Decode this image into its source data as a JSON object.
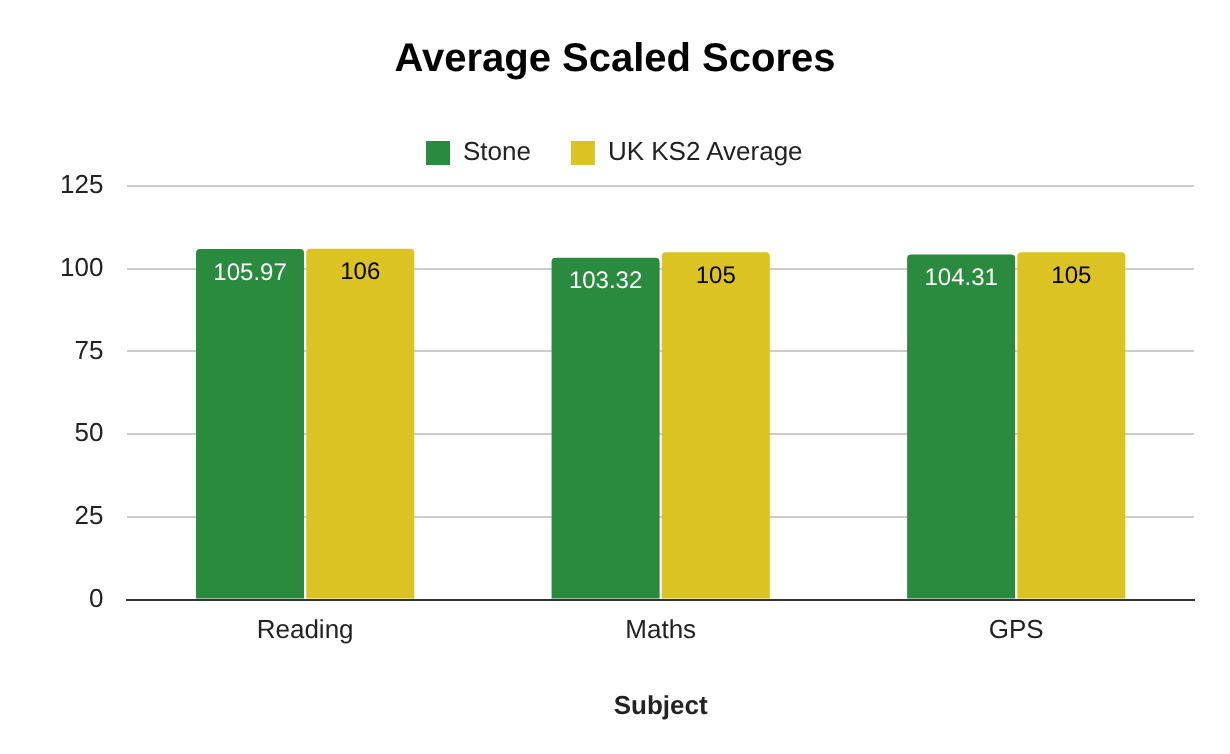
{
  "chart_data": {
    "type": "bar",
    "title": "Average Scaled Scores",
    "xlabel": "Subject",
    "categories": [
      "Reading",
      "Maths",
      "GPS"
    ],
    "series": [
      {
        "name": "Stone",
        "color": "#2a8a3e",
        "values": [
          105.97,
          103.32,
          104.31
        ]
      },
      {
        "name": "UK KS2 Average",
        "color": "#dcc324",
        "values": [
          106,
          105,
          105
        ]
      }
    ],
    "ylim": [
      0,
      125
    ],
    "yticks": [
      0,
      25,
      50,
      75,
      100,
      125
    ],
    "grid": "y",
    "legend": "top",
    "data_labels": true
  }
}
